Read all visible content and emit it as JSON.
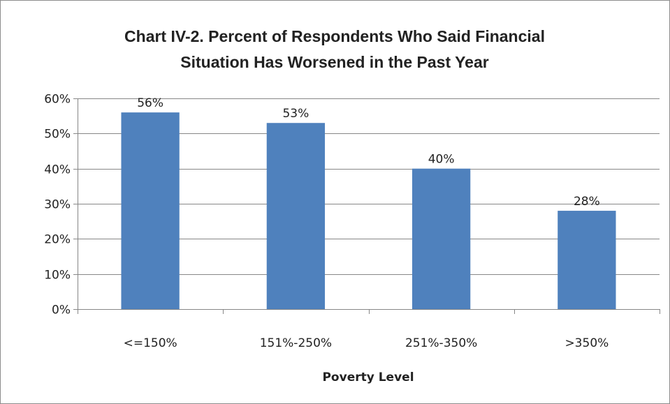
{
  "chart_data": {
    "type": "bar",
    "title_lines": [
      "Chart IV-2. Percent of Respondents Who Said Financial",
      "Situation Has Worsened in the Past Year"
    ],
    "xlabel": "Poverty Level",
    "ylabel": "",
    "categories": [
      "<=150%",
      "151%-250%",
      "251%-350%",
      ">350%"
    ],
    "values": [
      56,
      53,
      40,
      28
    ],
    "data_labels": [
      "56%",
      "53%",
      "40%",
      "28%"
    ],
    "ylim": [
      0,
      60
    ],
    "yticks": [
      0,
      10,
      20,
      30,
      40,
      50,
      60
    ],
    "ytick_labels": [
      "0%",
      "10%",
      "20%",
      "30%",
      "40%",
      "50%",
      "60%"
    ],
    "grid": true,
    "legend": "none",
    "bar_color": "#4f81bd",
    "grid_color": "#878787"
  }
}
